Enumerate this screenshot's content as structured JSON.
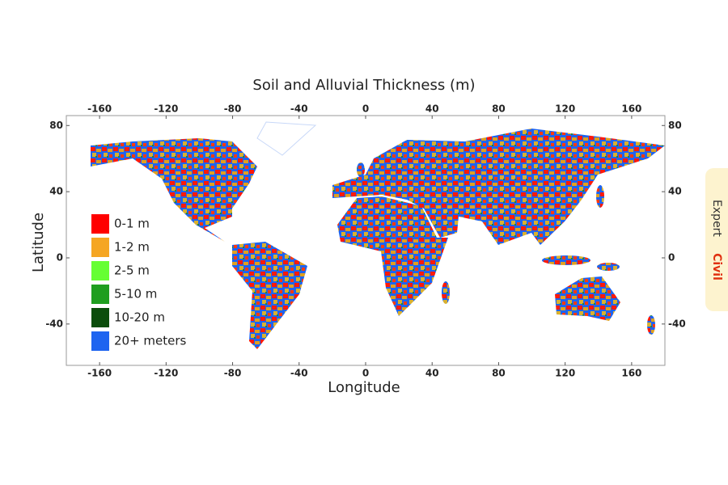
{
  "map": {
    "title": "Soil and Alluvial Thickness  (m)",
    "x_label": "Longitude",
    "y_label": "Latitude",
    "xlim": [
      -180,
      180
    ],
    "ylim": [
      -65,
      86
    ],
    "xticks": [
      -160,
      -120,
      -80,
      -40,
      0,
      40,
      80,
      120,
      160
    ],
    "yticks": [
      -40,
      0,
      40,
      80
    ],
    "legend": [
      {
        "label": "0-1 m",
        "color": "#ff0000"
      },
      {
        "label": "1-2 m",
        "color": "#f5a623"
      },
      {
        "label": "2-5 m",
        "color": "#66ff33"
      },
      {
        "label": "5-10 m",
        "color": "#1f9e1f"
      },
      {
        "label": "10-20 m",
        "color": "#0b4d0b"
      },
      {
        "label": "20+ meters",
        "color": "#1e64f0"
      }
    ],
    "watermark": [
      "Expert",
      "Civil"
    ]
  }
}
